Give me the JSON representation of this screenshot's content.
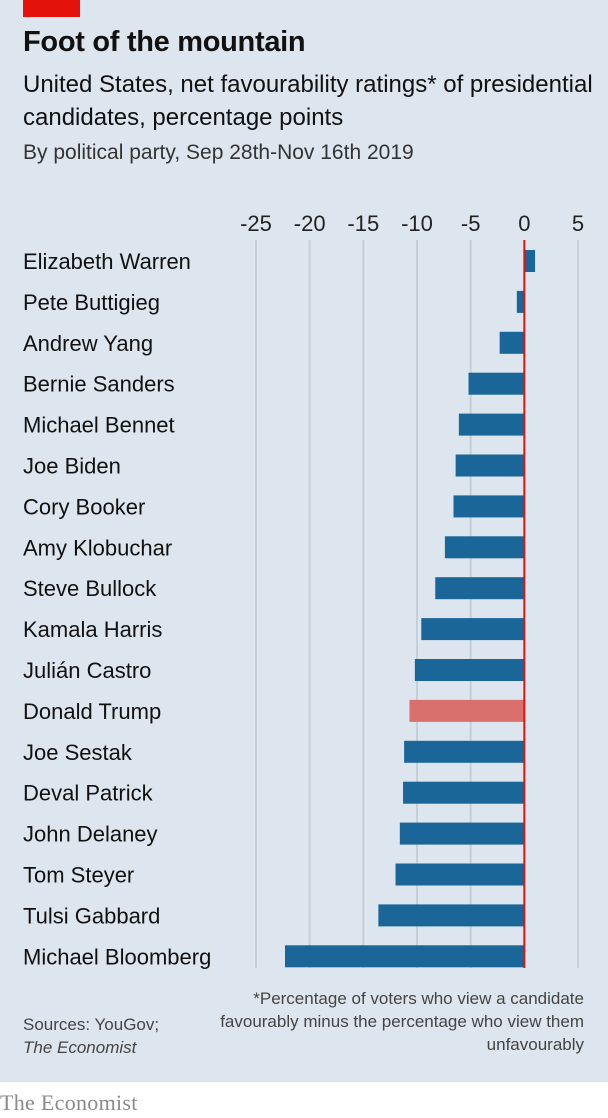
{
  "header": {
    "title": "Foot of the mountain",
    "subtitle": "United States, net favourability ratings* of presidential candidates, percentage points",
    "subsubtitle": "By political party, Sep 28th-Nov 16th 2019"
  },
  "footer": {
    "sources_label": "Sources: YouGov;",
    "sources_publication": "The Economist",
    "footnote": "*Percentage of voters who view a candidate favourably minus the percentage who view them unfavourably",
    "logo": "The Economist"
  },
  "colors": {
    "background": "#dde6ee",
    "democrat_bar": "#1a6699",
    "republican_bar": "#d9706e",
    "zero_line": "#e3120b",
    "gridline": "#c3cfd9"
  },
  "chart_data": {
    "type": "bar",
    "orientation": "horizontal",
    "xlim": [
      -25,
      5
    ],
    "x_ticks": [
      "-25",
      "-20",
      "-15",
      "-10",
      "-5",
      "0",
      "5"
    ],
    "x_tick_values": [
      -25,
      -20,
      -15,
      -10,
      -5,
      0,
      5
    ],
    "categories": [
      "Elizabeth Warren",
      "Pete Buttigieg",
      "Andrew Yang",
      "Bernie Sanders",
      "Michael Bennet",
      "Joe Biden",
      "Cory Booker",
      "Amy Klobuchar",
      "Steve Bullock",
      "Kamala Harris",
      "Julián Castro",
      "Donald Trump",
      "Joe Sestak",
      "Deval Patrick",
      "John Delaney",
      "Tom Steyer",
      "Tulsi Gabbard",
      "Michael Bloomberg"
    ],
    "values": [
      1.0,
      -0.7,
      -2.3,
      -5.2,
      -6.1,
      -6.4,
      -6.6,
      -7.4,
      -8.3,
      -9.6,
      -10.2,
      -10.7,
      -11.2,
      -11.3,
      -11.6,
      -12.0,
      -13.6,
      -22.3
    ],
    "party": [
      "D",
      "D",
      "D",
      "D",
      "D",
      "D",
      "D",
      "D",
      "D",
      "D",
      "D",
      "R",
      "D",
      "D",
      "D",
      "D",
      "D",
      "D"
    ],
    "grid": true,
    "legend": "none"
  }
}
